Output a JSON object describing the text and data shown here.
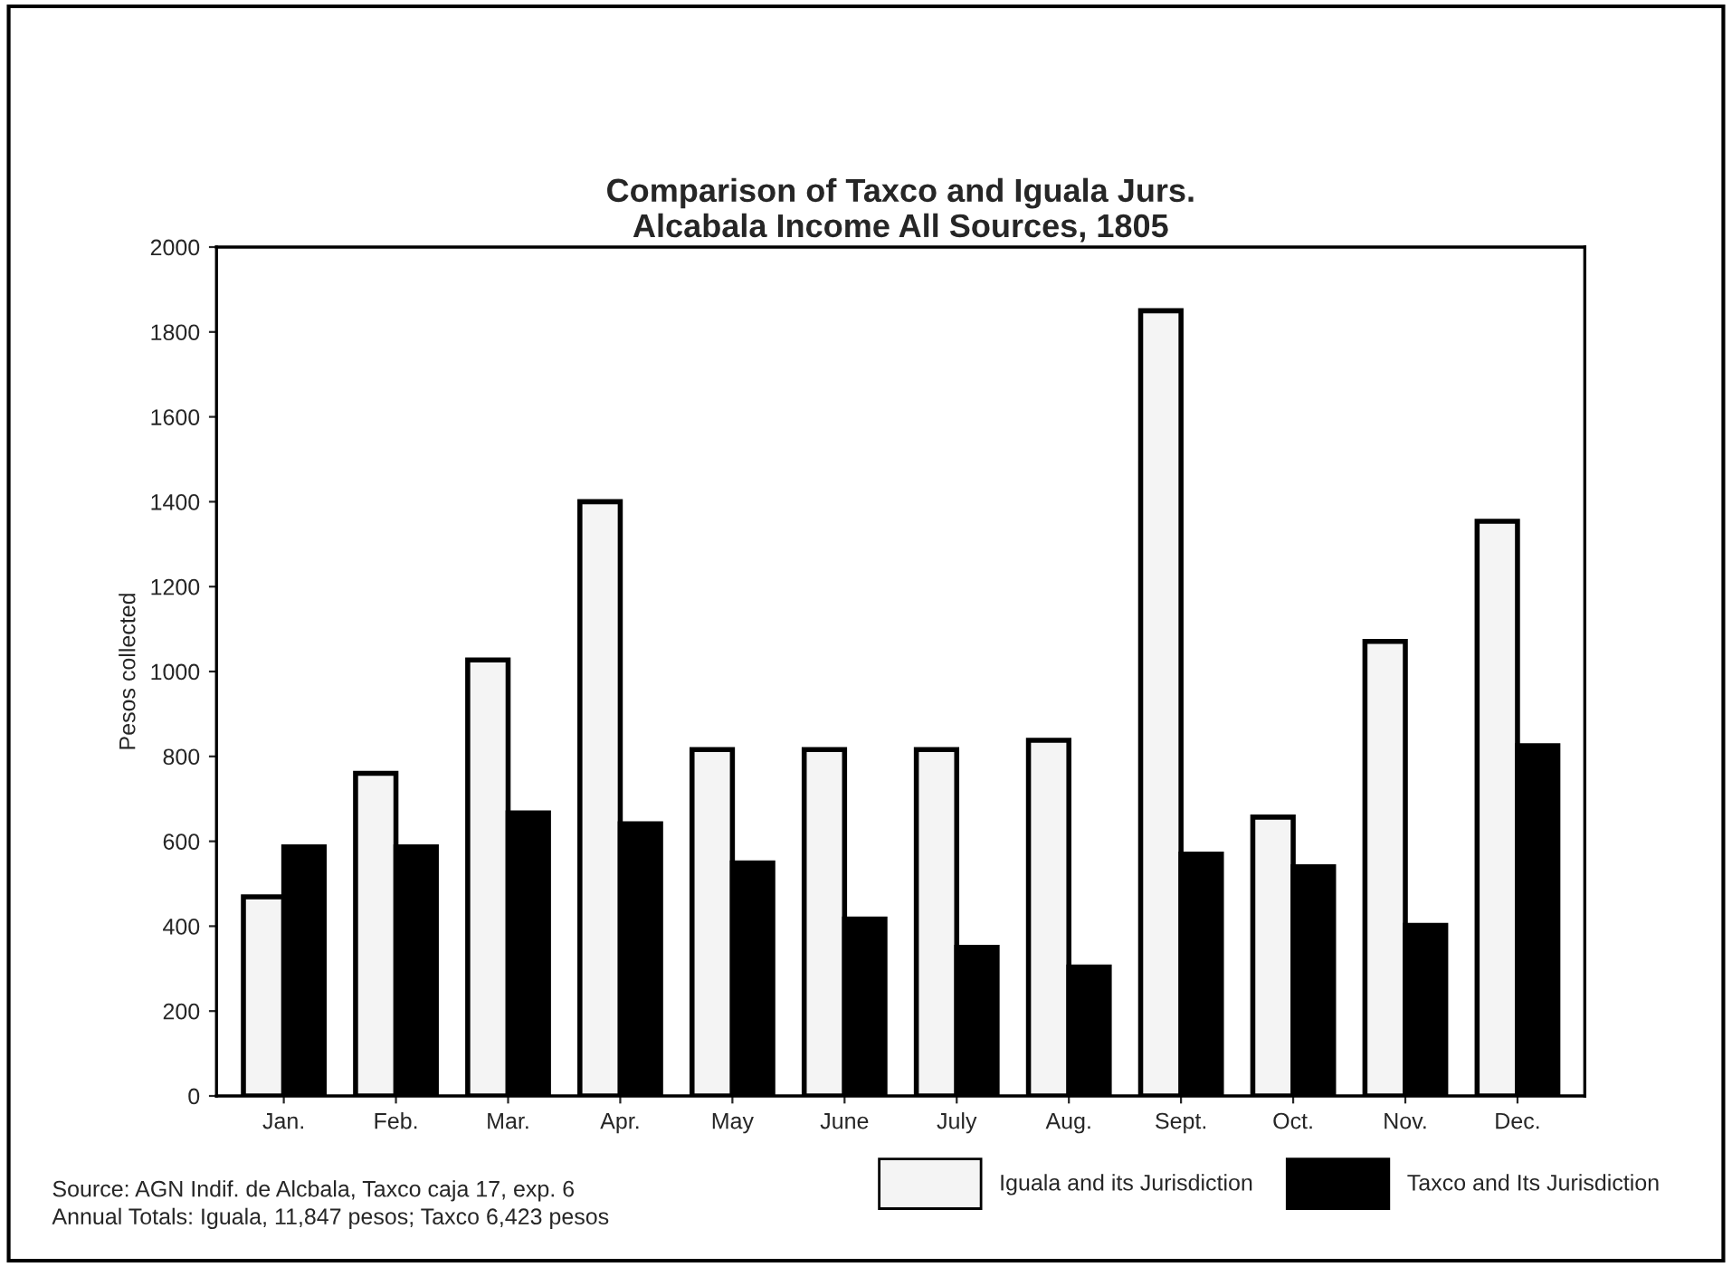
{
  "chart_data": {
    "type": "bar",
    "title": "Comparison of Taxco and Iguala Jurs.\nAlcabala Income All Sources, 1805",
    "ylabel": "Pesos collected",
    "categories": [
      "Jan.",
      "Feb.",
      "Mar.",
      "Apr.",
      "May",
      "June",
      "July",
      "Aug.",
      "Sept.",
      "Oct.",
      "Nov.",
      "Dec."
    ],
    "series": [
      {
        "name": "Iguala and its Jurisdiction",
        "color": "#f4f4f4",
        "values": [
          469,
          760,
          1027,
          1400,
          816,
          816,
          816,
          838,
          1850,
          657,
          1071,
          1354
        ]
      },
      {
        "name": "Taxco and Its Jurisdiction",
        "color": "#000000",
        "values": [
          587,
          587,
          667,
          641,
          549,
          417,
          350,
          304,
          570,
          540,
          402,
          825
        ]
      }
    ],
    "ylim": [
      0,
      2000
    ],
    "yticks": [
      0,
      200,
      400,
      600,
      800,
      1000,
      1200,
      1400,
      1600,
      1800,
      2000
    ],
    "grid": false,
    "legend": "bottom",
    "annotations": [
      "Source: AGN Indif. de Alcbala, Taxco caja 17, exp. 6\nAnnual Totals: Iguala, 11,847 pesos; Taxco 6,423 pesos"
    ]
  }
}
